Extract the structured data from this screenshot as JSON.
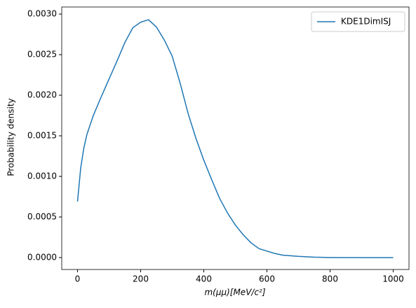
{
  "chart_data": {
    "type": "line",
    "x_label": "m(μμ)[MeV/c²]",
    "y_label": "Probability density",
    "x": [
      0,
      10,
      20,
      30,
      50,
      75,
      100,
      125,
      150,
      175,
      200,
      225,
      250,
      275,
      300,
      325,
      350,
      375,
      400,
      425,
      450,
      475,
      500,
      525,
      550,
      575,
      600,
      625,
      650,
      700,
      750,
      800,
      900,
      1000
    ],
    "series": [
      {
        "name": "KDE1DimISJ",
        "color": "#1f77b4",
        "values": [
          0.00069,
          0.0011,
          0.00135,
          0.00152,
          0.00175,
          0.00198,
          0.0022,
          0.00242,
          0.00265,
          0.00283,
          0.0029,
          0.00293,
          0.00284,
          0.00268,
          0.00248,
          0.00215,
          0.00178,
          0.00147,
          0.0012,
          0.00096,
          0.00073,
          0.00055,
          0.0004,
          0.00028,
          0.00018,
          0.00011,
          8e-05,
          5e-05,
          3e-05,
          1.5e-05,
          5e-06,
          1e-06,
          0,
          0
        ]
      }
    ],
    "xlim": [
      -50,
      1050
    ],
    "ylim": [
      -0.000147,
      0.003087
    ],
    "xticks": [
      0,
      200,
      400,
      600,
      800,
      1000
    ],
    "yticks": [
      {
        "value": 0,
        "label": "0.0000"
      },
      0.0005,
      {
        "value": 0.001,
        "label": "0.0010"
      },
      0.0015,
      {
        "value": 0.002,
        "label": "0.0020"
      },
      0.0025,
      {
        "value": 0.003,
        "label": "0.0030"
      }
    ],
    "legend": "upper right"
  }
}
